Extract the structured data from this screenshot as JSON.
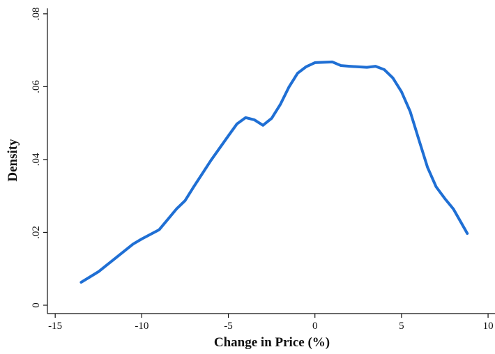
{
  "chart_data": {
    "type": "line",
    "x_label": "Change in Price (%)",
    "y_label": "Density",
    "x": [
      -13.5,
      -12.5,
      -11.5,
      -10.5,
      -10,
      -9,
      -8,
      -7.5,
      -7,
      -6,
      -5,
      -4.5,
      -4,
      -3.5,
      -3,
      -2.5,
      -2,
      -1.5,
      -1,
      -0.5,
      0,
      1,
      1.5,
      2,
      3,
      3.5,
      4,
      4.5,
      5,
      5.5,
      6,
      6.5,
      7,
      7.5,
      8,
      8.8
    ],
    "values": [
      0.0063,
      0.0092,
      0.013,
      0.0168,
      0.0182,
      0.0207,
      0.0264,
      0.0287,
      0.0325,
      0.0398,
      0.0465,
      0.0498,
      0.0515,
      0.0509,
      0.0494,
      0.0513,
      0.0551,
      0.0599,
      0.0637,
      0.0655,
      0.0666,
      0.0668,
      0.0658,
      0.0656,
      0.0653,
      0.0656,
      0.0647,
      0.0624,
      0.0586,
      0.0532,
      0.0455,
      0.0379,
      0.0325,
      0.0293,
      0.0264,
      0.0197
    ],
    "color": "#1f6fd4",
    "xlim": [
      -15.45,
      10.4
    ],
    "ylim": [
      -0.0023,
      0.0815
    ],
    "xticks": [
      -15,
      -10,
      -5,
      0,
      5,
      10
    ],
    "yticks": [
      0,
      {
        "value": 0.02,
        "label": ".02"
      },
      {
        "value": 0.04,
        "label": ".04"
      },
      {
        "value": 0.06,
        "label": ".06"
      },
      {
        "value": 0.08,
        "label": ".08"
      }
    ],
    "grid": false
  }
}
